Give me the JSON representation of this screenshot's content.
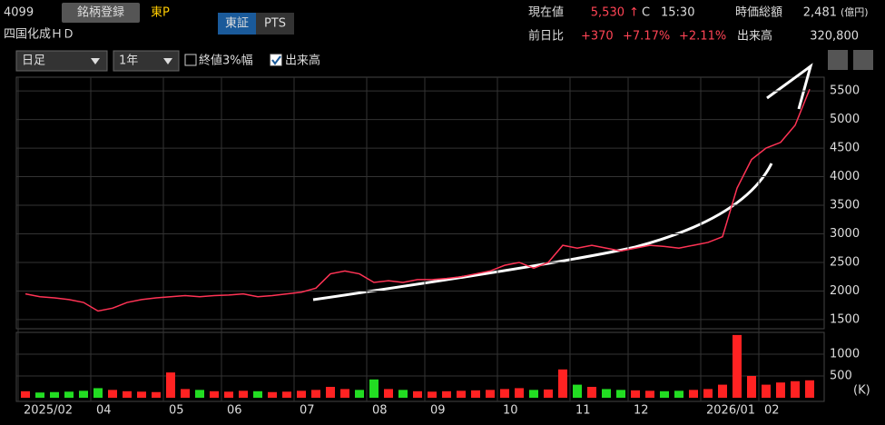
{
  "header": {
    "code": "4099",
    "register": "銘柄登録",
    "market": "東P",
    "tab_tse": "東証",
    "tab_pts": "PTS",
    "name": "四国化成ＨＤ",
    "price_label": "現在値",
    "price": "5,530",
    "arrow": "↑",
    "flag": "C",
    "time": "15:30",
    "cap_label": "時価総額",
    "cap": "2,481",
    "cap_unit": "(億円)",
    "change_label": "前日比",
    "change": "+370",
    "change_pct": "+7.17%",
    "index_pct": "+2.11%",
    "volume_label": "出来高",
    "volume": "320,800",
    "period": "日足",
    "range": "1年",
    "opt_3pct": "終値3%幅",
    "opt_volume": "出来高"
  },
  "chart_data": {
    "type": "line",
    "color": "#ff3355",
    "categories": [
      "2025/02",
      null,
      null,
      null,
      null,
      "04",
      null,
      null,
      null,
      null,
      "05",
      null,
      null,
      null,
      "06",
      null,
      null,
      null,
      null,
      "07",
      null,
      null,
      null,
      null,
      "08",
      null,
      null,
      null,
      "09",
      null,
      null,
      null,
      null,
      "10",
      null,
      null,
      null,
      null,
      "11",
      null,
      null,
      null,
      "12",
      null,
      null,
      null,
      null,
      "2026/01",
      null,
      null,
      null,
      "02",
      null,
      null,
      null
    ],
    "values": [
      1950,
      1900,
      1880,
      1850,
      1800,
      1650,
      1700,
      1800,
      1850,
      1880,
      1900,
      1920,
      1900,
      1920,
      1930,
      1950,
      1900,
      1920,
      1950,
      1980,
      2050,
      2300,
      2350,
      2300,
      2150,
      2180,
      2150,
      2200,
      2200,
      2220,
      2250,
      2300,
      2350,
      2450,
      2500,
      2400,
      2500,
      2800,
      2750,
      2800,
      2750,
      2700,
      2750,
      2800,
      2780,
      2750,
      2800,
      2850,
      2950,
      3800,
      4300,
      4500,
      4600,
      4900,
      5530
    ],
    "ylim": [
      1340,
      5740
    ],
    "yticks": [
      1500,
      2000,
      2500,
      3000,
      3500,
      4000,
      4500,
      5000,
      5500
    ],
    "volume": {
      "values": [
        150,
        120,
        130,
        140,
        160,
        220,
        180,
        150,
        140,
        130,
        580,
        200,
        180,
        150,
        140,
        160,
        150,
        130,
        140,
        160,
        180,
        250,
        200,
        180,
        420,
        200,
        180,
        150,
        140,
        150,
        160,
        170,
        180,
        200,
        220,
        180,
        190,
        650,
        300,
        250,
        200,
        180,
        170,
        160,
        150,
        160,
        180,
        200,
        300,
        1440,
        500,
        300,
        350,
        380,
        400
      ],
      "ylim": [
        0,
        1500
      ],
      "yticks": [
        500,
        1000
      ],
      "unit": "(K)",
      "up_color": "#ff2222",
      "down_color": "#22dd22"
    }
  }
}
